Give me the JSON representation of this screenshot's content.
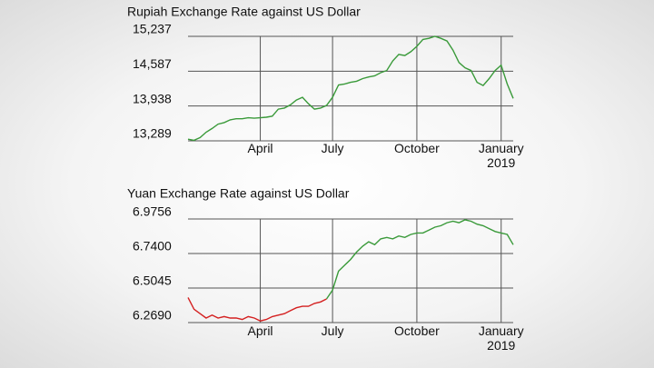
{
  "chart_data": [
    {
      "type": "line",
      "title": "Rupiah Exchange Rate against US Dollar",
      "categories": [
        null,
        null,
        null,
        null,
        null,
        null,
        null,
        null,
        null,
        null,
        null,
        null,
        "April",
        null,
        null,
        null,
        null,
        null,
        null,
        null,
        null,
        null,
        null,
        null,
        "July",
        null,
        null,
        null,
        null,
        null,
        null,
        null,
        null,
        null,
        null,
        null,
        null,
        null,
        "October",
        null,
        null,
        null,
        null,
        null,
        null,
        null,
        null,
        null,
        null,
        null,
        null,
        null,
        "January 2019",
        null,
        null
      ],
      "series": [
        {
          "color": "#3a9a3a",
          "values": [
            13320,
            13300,
            13350,
            13450,
            13520,
            13600,
            13630,
            13680,
            13700,
            13700,
            13720,
            13710,
            13720,
            13730,
            13750,
            13880,
            13900,
            13960,
            14050,
            14100,
            13980,
            13880,
            13900,
            13950,
            14100,
            14330,
            14350,
            14380,
            14400,
            14450,
            14480,
            14500,
            14560,
            14600,
            14780,
            14900,
            14880,
            14950,
            15050,
            15180,
            15200,
            15237,
            15200,
            15150,
            14980,
            14750,
            14650,
            14600,
            14380,
            14320,
            14450,
            14600,
            14700,
            14350,
            14080
          ]
        }
      ],
      "ylim": [
        13289,
        15237
      ],
      "yticks": [
        {
          "value": 15237,
          "label": "15,237"
        },
        {
          "value": 14587,
          "label": "14,587"
        },
        {
          "value": 13938,
          "label": "13,938"
        },
        {
          "value": 13289,
          "label": "13,289"
        }
      ],
      "grid": true
    },
    {
      "type": "line",
      "title": "Yuan Exchange Rate against US Dollar",
      "categories": [
        null,
        null,
        null,
        null,
        null,
        null,
        null,
        null,
        null,
        null,
        null,
        null,
        "April",
        null,
        null,
        null,
        null,
        null,
        null,
        null,
        null,
        null,
        null,
        null,
        "July",
        null,
        null,
        null,
        null,
        null,
        null,
        null,
        null,
        null,
        null,
        null,
        null,
        null,
        "October",
        null,
        null,
        null,
        null,
        null,
        null,
        null,
        null,
        null,
        null,
        null,
        null,
        null,
        "January 2019",
        null,
        null
      ],
      "series": [
        {
          "color": "#d42020",
          "values": [
            6.44,
            6.36,
            6.33,
            6.3,
            6.32,
            6.3,
            6.31,
            6.3,
            6.3,
            6.29,
            6.31,
            6.3,
            6.28,
            6.29,
            6.31,
            6.32,
            6.33,
            6.35,
            6.37,
            6.38,
            6.38,
            6.4,
            6.41,
            6.43,
            null,
            null,
            null,
            null,
            null,
            null,
            null,
            null,
            null,
            null,
            null,
            null,
            null,
            null,
            null,
            null,
            null,
            null,
            null,
            null,
            null,
            null,
            null,
            null,
            null,
            null,
            null,
            null,
            null,
            null,
            null
          ]
        },
        {
          "color": "#3a9a3a",
          "values": [
            null,
            null,
            null,
            null,
            null,
            null,
            null,
            null,
            null,
            null,
            null,
            null,
            null,
            null,
            null,
            null,
            null,
            null,
            null,
            null,
            null,
            null,
            null,
            6.43,
            6.49,
            6.62,
            6.66,
            6.7,
            6.75,
            6.79,
            6.82,
            6.8,
            6.84,
            6.85,
            6.84,
            6.86,
            6.85,
            6.87,
            6.88,
            6.88,
            6.9,
            6.92,
            6.93,
            6.95,
            6.96,
            6.95,
            6.97,
            6.96,
            6.94,
            6.93,
            6.91,
            6.89,
            6.88,
            6.87,
            6.8
          ]
        }
      ],
      "ylim": [
        6.269,
        6.9756
      ],
      "yticks": [
        {
          "value": 6.9756,
          "label": "6.9756"
        },
        {
          "value": 6.74,
          "label": "6.7400"
        },
        {
          "value": 6.5045,
          "label": "6.5045"
        },
        {
          "value": 6.269,
          "label": "6.2690"
        }
      ],
      "grid": true
    }
  ]
}
